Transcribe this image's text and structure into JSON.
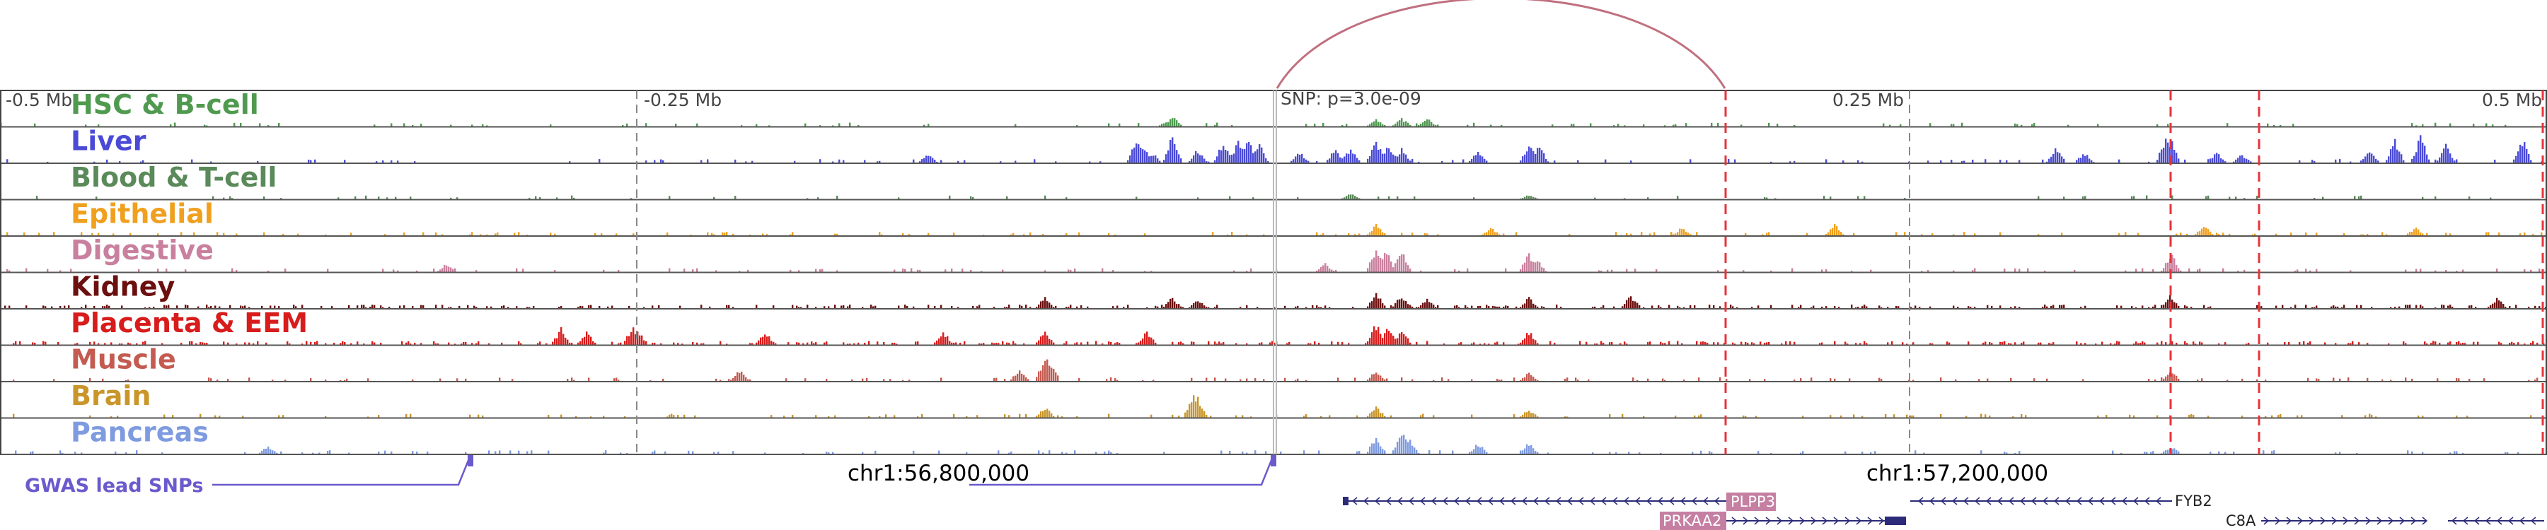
{
  "view": {
    "scale_labels": [
      {
        "text": "-0.5 Mb"
      },
      {
        "text": "-0.25 Mb"
      },
      {
        "text": "0.25 Mb"
      },
      {
        "text": "0.5 Mb"
      }
    ],
    "snp_label": "SNP: p=3.0e-09",
    "coordinate_labels": [
      "chr1:56,800,000",
      "chr1:57,200,000"
    ],
    "gwas_label": "GWAS lead SNPs",
    "colors": {
      "highlight_line": "#e8333b",
      "gwas": "#6a5acd",
      "loop_arc": "#c0707f",
      "gene": "#2b2b7a",
      "gene_highlight": "#c57fa2"
    }
  },
  "tracks": [
    {
      "label": "HSC & B-cell",
      "color": "#4f9a4f",
      "peaks": [
        [
          0.46,
          0.35
        ],
        [
          0.458,
          0.2
        ],
        [
          0.54,
          0.25
        ],
        [
          0.55,
          0.3
        ],
        [
          0.56,
          0.3
        ]
      ],
      "noise": 0.08
    },
    {
      "label": "Liver",
      "color": "#4a4ad6",
      "peaks": [
        [
          0.364,
          0.3
        ],
        [
          0.446,
          0.95
        ],
        [
          0.449,
          0.6
        ],
        [
          0.452,
          0.4
        ],
        [
          0.46,
          1.0
        ],
        [
          0.47,
          0.5
        ],
        [
          0.48,
          0.8
        ],
        [
          0.486,
          0.9
        ],
        [
          0.49,
          0.9
        ],
        [
          0.494,
          0.7
        ],
        [
          0.51,
          0.4
        ],
        [
          0.524,
          0.5
        ],
        [
          0.53,
          0.6
        ],
        [
          0.54,
          0.9
        ],
        [
          0.545,
          0.7
        ],
        [
          0.55,
          0.5
        ],
        [
          0.58,
          0.5
        ],
        [
          0.6,
          0.7
        ],
        [
          0.604,
          0.6
        ],
        [
          0.807,
          0.6
        ],
        [
          0.818,
          0.4
        ],
        [
          0.85,
          1.0
        ],
        [
          0.852,
          0.9
        ],
        [
          0.87,
          0.4
        ],
        [
          0.88,
          0.3
        ],
        [
          0.93,
          0.5
        ],
        [
          0.94,
          0.9
        ],
        [
          0.95,
          1.0
        ],
        [
          0.96,
          0.7
        ],
        [
          0.99,
          0.9
        ]
      ],
      "noise": 0.1
    },
    {
      "label": "Blood & T-cell",
      "color": "#5a8a5a",
      "peaks": [
        [
          0.53,
          0.2
        ],
        [
          0.6,
          0.15
        ]
      ],
      "noise": 0.06
    },
    {
      "label": "Epithelial",
      "color": "#f0a01e",
      "peaks": [
        [
          0.54,
          0.4
        ],
        [
          0.585,
          0.3
        ],
        [
          0.66,
          0.3
        ],
        [
          0.72,
          0.4
        ],
        [
          0.865,
          0.4
        ],
        [
          0.948,
          0.3
        ]
      ],
      "noise": 0.14
    },
    {
      "label": "Digestive",
      "color": "#c9809e",
      "peaks": [
        [
          0.175,
          0.3
        ],
        [
          0.52,
          0.3
        ],
        [
          0.54,
          0.9
        ],
        [
          0.544,
          0.8
        ],
        [
          0.55,
          0.9
        ],
        [
          0.6,
          0.7
        ],
        [
          0.603,
          0.5
        ],
        [
          0.852,
          0.7
        ]
      ],
      "noise": 0.1
    },
    {
      "label": "Kidney",
      "color": "#6b0f0f",
      "peaks": [
        [
          0.41,
          0.4
        ],
        [
          0.46,
          0.4
        ],
        [
          0.47,
          0.3
        ],
        [
          0.54,
          0.6
        ],
        [
          0.55,
          0.5
        ],
        [
          0.56,
          0.4
        ],
        [
          0.6,
          0.4
        ],
        [
          0.64,
          0.5
        ],
        [
          0.852,
          0.5
        ],
        [
          0.98,
          0.4
        ]
      ],
      "noise": 0.28
    },
    {
      "label": "Placenta & EEM",
      "color": "#d81c1c",
      "peaks": [
        [
          0.22,
          0.6
        ],
        [
          0.23,
          0.5
        ],
        [
          0.248,
          0.7
        ],
        [
          0.25,
          0.6
        ],
        [
          0.3,
          0.5
        ],
        [
          0.37,
          0.5
        ],
        [
          0.41,
          0.5
        ],
        [
          0.45,
          0.5
        ],
        [
          0.54,
          0.8
        ],
        [
          0.545,
          0.7
        ],
        [
          0.55,
          0.6
        ],
        [
          0.6,
          0.5
        ]
      ],
      "noise": 0.32
    },
    {
      "label": "Muscle",
      "color": "#c45a50",
      "peaks": [
        [
          0.29,
          0.4
        ],
        [
          0.4,
          0.5
        ],
        [
          0.41,
          1.0
        ],
        [
          0.412,
          0.8
        ],
        [
          0.54,
          0.4
        ],
        [
          0.6,
          0.3
        ],
        [
          0.852,
          0.4
        ]
      ],
      "noise": 0.12
    },
    {
      "label": "Brain",
      "color": "#c9962a",
      "peaks": [
        [
          0.41,
          0.4
        ],
        [
          0.468,
          0.9
        ],
        [
          0.47,
          0.7
        ],
        [
          0.54,
          0.4
        ],
        [
          0.6,
          0.3
        ]
      ],
      "noise": 0.12
    },
    {
      "label": "Pancreas",
      "color": "#7e9be0",
      "peaks": [
        [
          0.105,
          0.3
        ],
        [
          0.54,
          0.7
        ],
        [
          0.55,
          0.9
        ],
        [
          0.553,
          0.6
        ],
        [
          0.58,
          0.4
        ],
        [
          0.6,
          0.4
        ],
        [
          0.852,
          0.3
        ]
      ],
      "noise": 0.12
    }
  ],
  "genes": [
    {
      "name": "PLPP3",
      "highlight": true
    },
    {
      "name": "PRKAA2",
      "highlight": true
    },
    {
      "name": "FYB2",
      "highlight": false
    },
    {
      "name": "C8A",
      "highlight": false
    }
  ]
}
